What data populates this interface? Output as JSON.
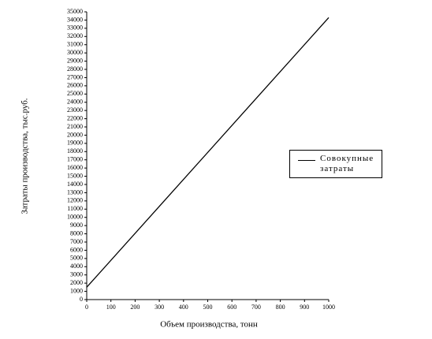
{
  "chart_data": {
    "type": "line",
    "x_label": "Объем производства, тонн",
    "y_label": "Затраты производства, тыс.руб.",
    "x": [
      0,
      1000
    ],
    "series": [
      {
        "name": "Совокупные затраты",
        "color": "#000000",
        "values": [
          1500,
          34300
        ]
      }
    ],
    "xlim": [
      0,
      1000
    ],
    "xticks": [
      0,
      100,
      200,
      300,
      400,
      500,
      600,
      700,
      800,
      900,
      1000
    ],
    "ylim": [
      0,
      35000
    ],
    "yticks": [
      0,
      1000,
      2000,
      3000,
      4000,
      5000,
      6000,
      7000,
      8000,
      9000,
      10000,
      11000,
      12000,
      13000,
      14000,
      15000,
      16000,
      17000,
      18000,
      19000,
      20000,
      21000,
      22000,
      23000,
      24000,
      25000,
      26000,
      27000,
      28000,
      29000,
      30000,
      31000,
      32000,
      33000,
      34000,
      35000
    ],
    "legend": "right"
  }
}
